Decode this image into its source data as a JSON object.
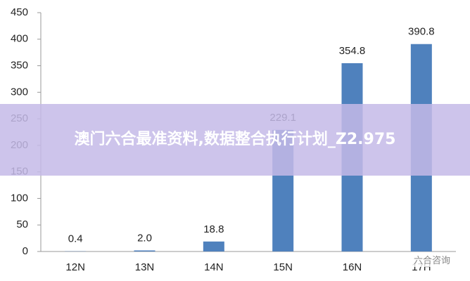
{
  "chart_data": {
    "type": "bar",
    "categories": [
      "12N",
      "13N",
      "14N",
      "15N",
      "16N",
      "17H"
    ],
    "values": [
      0.4,
      2.0,
      18.8,
      229.1,
      354.8,
      390.8
    ],
    "value_labels": [
      "0.4",
      "2.0",
      "18.8",
      "229.1",
      "354.8",
      "390.8"
    ],
    "color": "#4f81bd",
    "ylim": [
      0,
      450
    ],
    "yticks": [
      0,
      50,
      100,
      150,
      200,
      250,
      300,
      350,
      400,
      450
    ],
    "grid": false
  },
  "banner": {
    "text": "澳门六合最准资料,数据整合执行计划_Z2.975"
  },
  "watermark": {
    "text": "六合咨询"
  }
}
